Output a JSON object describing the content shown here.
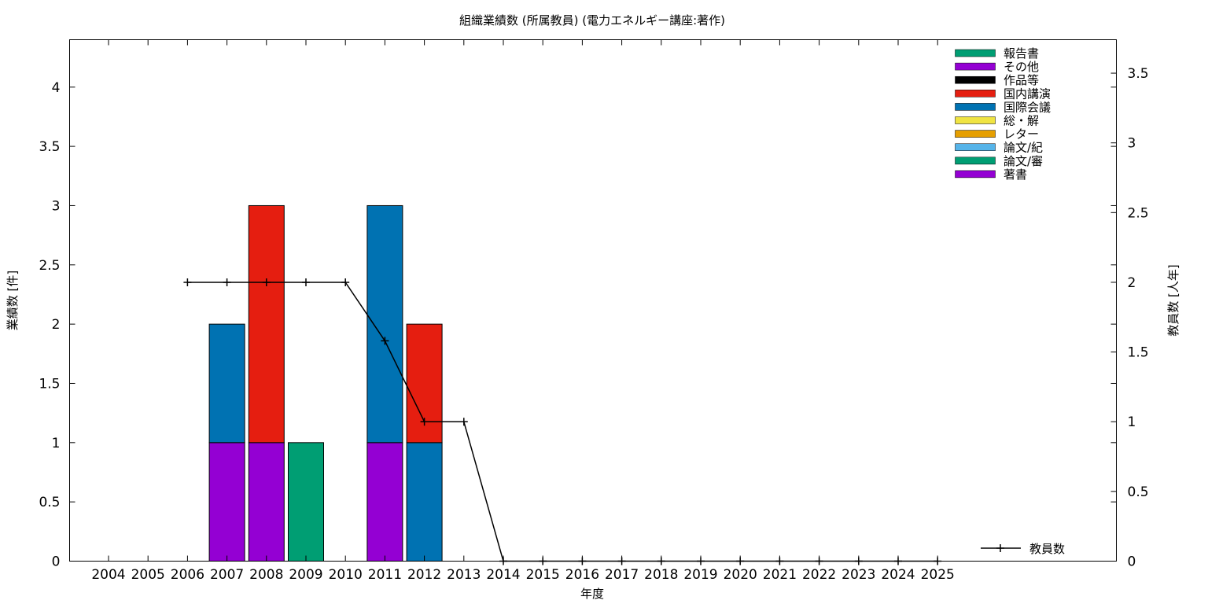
{
  "chart_data": {
    "type": "bar",
    "title": "組織業績数 (所属教員) (電力エネルギー講座:著作)",
    "xlabel": "年度",
    "ylabel": "業績数 [件]",
    "y2label": "教員数 [人年]",
    "categories": [
      "2004",
      "2005",
      "2006",
      "2007",
      "2008",
      "2009",
      "2010",
      "2011",
      "2012",
      "2013",
      "2014",
      "2015",
      "2016",
      "2017",
      "2018",
      "2019",
      "2020",
      "2021",
      "2022",
      "2023",
      "2024",
      "2025"
    ],
    "ylim": [
      0,
      4.4
    ],
    "y2lim": [
      0,
      3.74
    ],
    "yticks": [
      "0",
      "0.5",
      "1",
      "1.5",
      "2",
      "2.5",
      "3",
      "3.5",
      "4"
    ],
    "y2ticks": [
      "0",
      "0.5",
      "1",
      "1.5",
      "2",
      "2.5",
      "3",
      "3.5"
    ],
    "stacked": true,
    "series": [
      {
        "name": "著書",
        "color": "#9400d3",
        "values": [
          0,
          0,
          0,
          1,
          1,
          0,
          0,
          1,
          0,
          0,
          0,
          0,
          0,
          0,
          0,
          0,
          0,
          0,
          0,
          0,
          0,
          0
        ]
      },
      {
        "name": "論文/審",
        "color": "#009e73",
        "values": [
          0,
          0,
          0,
          0,
          0,
          0,
          0,
          0,
          0,
          0,
          0,
          0,
          0,
          0,
          0,
          0,
          0,
          0,
          0,
          0,
          0,
          0
        ]
      },
      {
        "name": "論文/紀",
        "color": "#56b4e9",
        "values": [
          0,
          0,
          0,
          0,
          0,
          0,
          0,
          0,
          0,
          0,
          0,
          0,
          0,
          0,
          0,
          0,
          0,
          0,
          0,
          0,
          0,
          0
        ]
      },
      {
        "name": "レター",
        "color": "#e69f00",
        "values": [
          0,
          0,
          0,
          0,
          0,
          0,
          0,
          0,
          0,
          0,
          0,
          0,
          0,
          0,
          0,
          0,
          0,
          0,
          0,
          0,
          0,
          0
        ]
      },
      {
        "name": "総・解",
        "color": "#f0e442",
        "values": [
          0,
          0,
          0,
          0,
          0,
          0,
          0,
          0,
          0,
          0,
          0,
          0,
          0,
          0,
          0,
          0,
          0,
          0,
          0,
          0,
          0,
          0
        ]
      },
      {
        "name": "国際会議",
        "color": "#0072b2",
        "values": [
          0,
          0,
          0,
          1,
          0,
          0,
          0,
          2,
          1,
          0,
          0,
          0,
          0,
          0,
          0,
          0,
          0,
          0,
          0,
          0,
          0,
          0
        ]
      },
      {
        "name": "国内講演",
        "color": "#e51e10",
        "values": [
          0,
          0,
          0,
          0,
          2,
          0,
          0,
          0,
          1,
          0,
          0,
          0,
          0,
          0,
          0,
          0,
          0,
          0,
          0,
          0,
          0,
          0
        ]
      },
      {
        "name": "作品等",
        "color": "#000000",
        "values": [
          0,
          0,
          0,
          0,
          0,
          0,
          0,
          0,
          0,
          0,
          0,
          0,
          0,
          0,
          0,
          0,
          0,
          0,
          0,
          0,
          0,
          0
        ]
      },
      {
        "name": "その他",
        "color": "#9400d3",
        "values": [
          0,
          0,
          0,
          0,
          0,
          0,
          0,
          0,
          0,
          0,
          0,
          0,
          0,
          0,
          0,
          0,
          0,
          0,
          0,
          0,
          0,
          0
        ]
      },
      {
        "name": "報告書",
        "color": "#009e73",
        "values": [
          0,
          0,
          0,
          0,
          0,
          1,
          0,
          0,
          0,
          0,
          0,
          0,
          0,
          0,
          0,
          0,
          0,
          0,
          0,
          0,
          0,
          0
        ]
      }
    ],
    "line_series": {
      "name": "教員数",
      "axis": "right",
      "color": "#000000",
      "x": [
        "2006",
        "2007",
        "2008",
        "2009",
        "2010",
        "2011",
        "2012",
        "2013",
        "2014",
        "2015",
        "2016",
        "2017",
        "2018",
        "2019",
        "2020",
        "2021",
        "2022",
        "2023",
        "2024",
        "2025"
      ],
      "values": [
        2,
        2,
        2,
        2,
        2,
        1.58,
        1,
        1,
        0,
        0,
        0,
        0,
        0,
        0,
        0,
        0,
        0,
        0,
        0,
        0
      ]
    },
    "legend_position": "top-right",
    "line_legend_position": "bottom-right",
    "grid": false
  }
}
